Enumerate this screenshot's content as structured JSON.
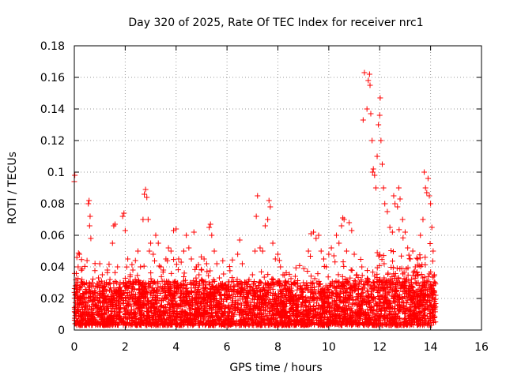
{
  "chart_data": {
    "type": "scatter",
    "title": "Day 320 of 2025, Rate Of TEC Index for receiver nrc1",
    "xlabel": "GPS time / hours",
    "ylabel": "ROTI / TECUs",
    "xlim": [
      0,
      16
    ],
    "ylim": [
      0,
      0.18
    ],
    "xticks": [
      0,
      2,
      4,
      6,
      8,
      10,
      12,
      14,
      16
    ],
    "yticks": [
      0,
      0.02,
      0.04,
      0.06,
      0.08,
      0.1,
      0.12,
      0.14,
      0.16,
      0.18
    ],
    "xtick_labels": [
      "0",
      "2",
      "4",
      "6",
      "8",
      "10",
      "12",
      "14",
      "16"
    ],
    "ytick_labels": [
      "0",
      "0.02",
      "0.04",
      "0.06",
      "0.08",
      "0.1",
      "0.12",
      "0.14",
      "0.16",
      "0.18"
    ],
    "grid": true,
    "marker": "+",
    "series_color": "#ff0000",
    "series": [
      {
        "name": "ROTI",
        "points": [
          [
            0.0,
            0.094
          ],
          [
            0.02,
            0.098
          ],
          [
            0.05,
            0.015
          ],
          [
            0.08,
            0.026
          ],
          [
            0.1,
            0.046
          ],
          [
            0.15,
            0.04
          ],
          [
            0.2,
            0.048
          ],
          [
            0.3,
            0.032
          ],
          [
            0.4,
            0.02
          ],
          [
            0.5,
            0.044
          ],
          [
            0.55,
            0.08
          ],
          [
            0.58,
            0.082
          ],
          [
            0.6,
            0.066
          ],
          [
            0.62,
            0.072
          ],
          [
            0.65,
            0.058
          ],
          [
            0.7,
            0.03
          ],
          [
            0.8,
            0.025
          ],
          [
            0.9,
            0.022
          ],
          [
            1.0,
            0.042
          ],
          [
            1.1,
            0.035
          ],
          [
            1.2,
            0.028
          ],
          [
            1.3,
            0.038
          ],
          [
            1.4,
            0.032
          ],
          [
            1.5,
            0.055
          ],
          [
            1.55,
            0.066
          ],
          [
            1.6,
            0.067
          ],
          [
            1.7,
            0.04
          ],
          [
            1.8,
            0.03
          ],
          [
            1.9,
            0.072
          ],
          [
            1.95,
            0.074
          ],
          [
            2.0,
            0.063
          ],
          [
            2.1,
            0.045
          ],
          [
            2.2,
            0.035
          ],
          [
            2.3,
            0.038
          ],
          [
            2.4,
            0.044
          ],
          [
            2.5,
            0.05
          ],
          [
            2.6,
            0.04
          ],
          [
            2.7,
            0.07
          ],
          [
            2.75,
            0.086
          ],
          [
            2.8,
            0.089
          ],
          [
            2.85,
            0.084
          ],
          [
            2.9,
            0.07
          ],
          [
            2.95,
            0.05
          ],
          [
            3.0,
            0.055
          ],
          [
            3.1,
            0.048
          ],
          [
            3.2,
            0.06
          ],
          [
            3.3,
            0.055
          ],
          [
            3.4,
            0.04
          ],
          [
            3.5,
            0.038
          ],
          [
            3.6,
            0.045
          ],
          [
            3.7,
            0.052
          ],
          [
            3.8,
            0.05
          ],
          [
            3.9,
            0.063
          ],
          [
            4.0,
            0.064
          ],
          [
            4.1,
            0.045
          ],
          [
            4.2,
            0.043
          ],
          [
            4.3,
            0.05
          ],
          [
            4.4,
            0.06
          ],
          [
            4.5,
            0.052
          ],
          [
            4.6,
            0.045
          ],
          [
            4.7,
            0.062
          ],
          [
            4.8,
            0.04
          ],
          [
            4.9,
            0.035
          ],
          [
            5.0,
            0.038
          ],
          [
            5.1,
            0.045
          ],
          [
            5.2,
            0.042
          ],
          [
            5.3,
            0.065
          ],
          [
            5.35,
            0.067
          ],
          [
            5.4,
            0.06
          ],
          [
            5.5,
            0.05
          ],
          [
            5.6,
            0.042
          ],
          [
            5.7,
            0.033
          ],
          [
            5.8,
            0.028
          ],
          [
            5.9,
            0.025
          ],
          [
            6.0,
            0.024
          ],
          [
            6.1,
            0.022
          ],
          [
            6.2,
            0.02
          ],
          [
            6.3,
            0.028
          ],
          [
            6.4,
            0.032
          ],
          [
            6.5,
            0.057
          ],
          [
            6.6,
            0.042
          ],
          [
            6.7,
            0.03
          ],
          [
            6.8,
            0.02
          ],
          [
            6.9,
            0.025
          ],
          [
            7.0,
            0.035
          ],
          [
            7.1,
            0.05
          ],
          [
            7.15,
            0.072
          ],
          [
            7.2,
            0.085
          ],
          [
            7.3,
            0.052
          ],
          [
            7.4,
            0.05
          ],
          [
            7.5,
            0.066
          ],
          [
            7.6,
            0.07
          ],
          [
            7.65,
            0.082
          ],
          [
            7.7,
            0.078
          ],
          [
            7.8,
            0.055
          ],
          [
            7.9,
            0.045
          ],
          [
            8.0,
            0.048
          ],
          [
            8.1,
            0.04
          ],
          [
            8.2,
            0.035
          ],
          [
            8.3,
            0.03
          ],
          [
            8.4,
            0.025
          ],
          [
            8.5,
            0.022
          ],
          [
            8.6,
            0.02
          ],
          [
            8.8,
            0.02
          ],
          [
            9.0,
            0.03
          ],
          [
            9.2,
            0.05
          ],
          [
            9.3,
            0.061
          ],
          [
            9.4,
            0.062
          ],
          [
            9.5,
            0.058
          ],
          [
            9.6,
            0.06
          ],
          [
            9.7,
            0.05
          ],
          [
            9.8,
            0.045
          ],
          [
            9.9,
            0.04
          ],
          [
            10.0,
            0.048
          ],
          [
            10.1,
            0.052
          ],
          [
            10.2,
            0.047
          ],
          [
            10.3,
            0.06
          ],
          [
            10.4,
            0.055
          ],
          [
            10.5,
            0.066
          ],
          [
            10.55,
            0.071
          ],
          [
            10.6,
            0.07
          ],
          [
            10.7,
            0.05
          ],
          [
            10.8,
            0.068
          ],
          [
            10.9,
            0.063
          ],
          [
            11.0,
            0.048
          ],
          [
            11.1,
            0.035
          ],
          [
            11.2,
            0.03
          ],
          [
            11.3,
            0.04
          ],
          [
            11.35,
            0.133
          ],
          [
            11.4,
            0.163
          ],
          [
            11.5,
            0.14
          ],
          [
            11.55,
            0.158
          ],
          [
            11.6,
            0.162
          ],
          [
            11.62,
            0.155
          ],
          [
            11.65,
            0.137
          ],
          [
            11.7,
            0.12
          ],
          [
            11.72,
            0.1
          ],
          [
            11.75,
            0.102
          ],
          [
            11.8,
            0.098
          ],
          [
            11.85,
            0.09
          ],
          [
            11.9,
            0.11
          ],
          [
            11.95,
            0.13
          ],
          [
            12.0,
            0.136
          ],
          [
            12.02,
            0.147
          ],
          [
            12.05,
            0.12
          ],
          [
            12.1,
            0.105
          ],
          [
            12.15,
            0.09
          ],
          [
            12.2,
            0.08
          ],
          [
            12.3,
            0.075
          ],
          [
            12.4,
            0.065
          ],
          [
            12.5,
            0.062
          ],
          [
            12.55,
            0.085
          ],
          [
            12.6,
            0.08
          ],
          [
            12.7,
            0.078
          ],
          [
            12.75,
            0.09
          ],
          [
            12.8,
            0.083
          ],
          [
            12.9,
            0.07
          ],
          [
            13.0,
            0.062
          ],
          [
            13.1,
            0.052
          ],
          [
            13.2,
            0.045
          ],
          [
            13.3,
            0.05
          ],
          [
            13.4,
            0.04
          ],
          [
            13.5,
            0.045
          ],
          [
            13.6,
            0.06
          ],
          [
            13.7,
            0.07
          ],
          [
            13.75,
            0.1
          ],
          [
            13.8,
            0.09
          ],
          [
            13.85,
            0.087
          ],
          [
            13.9,
            0.096
          ],
          [
            13.95,
            0.085
          ],
          [
            14.0,
            0.08
          ],
          [
            14.05,
            0.065
          ],
          [
            14.1,
            0.05
          ],
          [
            14.15,
            0.035
          ],
          [
            14.2,
            0.022
          ]
        ]
      }
    ]
  }
}
